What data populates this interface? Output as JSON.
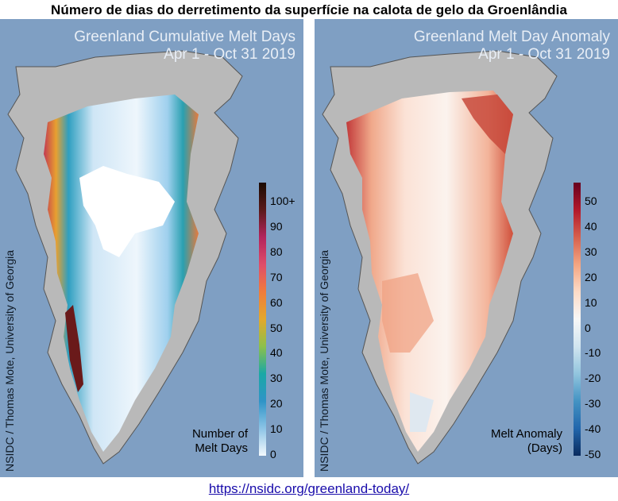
{
  "page_title": "Número de dias do derretimento da superfície na calota de gelo da Groenlândia",
  "source_url": "https://nsidc.org/greenland-today/",
  "panels": [
    {
      "title_line1": "Greenland Cumulative Melt Days",
      "title_line2": "Apr 1 - Oct 31 2019",
      "credit": "NSIDC / Thomas Mote, University of Georgia",
      "legend_title_line1": "Number of",
      "legend_title_line2": "Melt Days",
      "colorbar_labels": [
        "100+",
        "90",
        "80",
        "70",
        "60",
        "50",
        "40",
        "30",
        "20",
        "10",
        "0"
      ],
      "colorbar_stops": [
        "#f4f9fd",
        "#8cc4e6",
        "#2f94c7",
        "#1aa8a6",
        "#8cc04c",
        "#e3a82c",
        "#f07c3c",
        "#df4d6a",
        "#b3245c",
        "#5a1a1a",
        "#1a0a00"
      ]
    },
    {
      "title_line1": "Greenland Melt Day Anomaly",
      "title_line2": "Apr 1 - Oct 31 2019",
      "credit": "NSIDC / Thomas Mote, University of Georgia",
      "legend_title_line1": "Melt Anomaly",
      "legend_title_line2": "(Days)",
      "colorbar_labels": [
        "50",
        "40",
        "30",
        "20",
        "10",
        "0",
        "-10",
        "-20",
        "-30",
        "-40",
        "-50"
      ],
      "colorbar_stops": [
        "#0a2b5e",
        "#2166ac",
        "#4393c3",
        "#92c5de",
        "#d1e5f0",
        "#f7f7f7",
        "#fddbc7",
        "#f4a582",
        "#d6604d",
        "#b2182b",
        "#67001f"
      ]
    }
  ],
  "colors": {
    "ocean": "#7f9fc3",
    "land": "#b9b9b9",
    "coast": "#555555"
  }
}
